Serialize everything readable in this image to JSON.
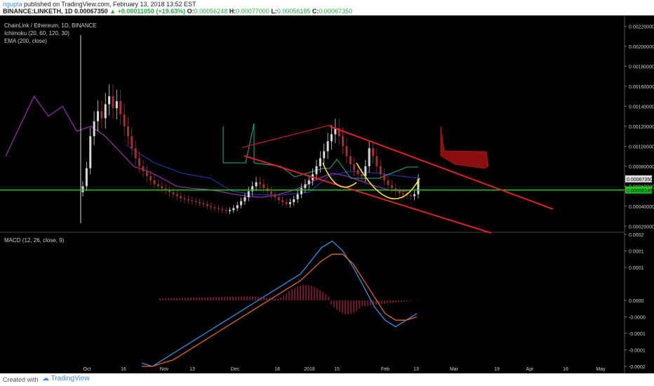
{
  "header": {
    "user": "ngupta",
    "published_text": " published on TradingView.com, February 13, 2018 13:52 EST",
    "symbol": "BINANCE:LINKETH, 1D",
    "price": "0.00067350",
    "change": "+0.00011050 (+19.63%)",
    "o_label": "O:",
    "o_value": "0.00056248",
    "h_label": "H:",
    "h_value": "0.00077000",
    "l_label": "L:",
    "l_value": "0.00056185",
    "c_label": "C:",
    "c_value": "0.00067350"
  },
  "legend": {
    "pair": "ChainLink / Ethereum, 1D, BINANCE",
    "ichimoku": "Ichimoku (20, 60, 120, 30)",
    "ema": "EMA (200, close)",
    "macd": "MACD (12, 26, close, 9)"
  },
  "footer": {
    "created": "Created with",
    "brand": "TradingView"
  },
  "colors": {
    "background": "#000000",
    "candle_up": "#d8d8d8",
    "candle_down": "#a03030",
    "ema": "#9b2fae",
    "trendline": "#e0202a",
    "support": "#22c422",
    "kijun": "#2040c0",
    "tenkan": "#20b090",
    "pattern_arc": "#ffee33",
    "cloud": "#8b0f0f",
    "macd": "#3a8de0",
    "signal": "#e06a1e",
    "histogram": "#8b1a3a"
  },
  "chart_data": [
    {
      "type": "candlestick",
      "title": "ChainLink / Ethereum, 1D, BINANCE",
      "y_tick_labels": [
        "0.00220000",
        "0.00200000",
        "0.00180000",
        "0.00160000",
        "0.00140000",
        "0.00120000",
        "0.00100000",
        "0.00080000",
        "0.00060000",
        "0.00040000",
        "0.00020000"
      ],
      "ylim": [
        0.00016,
        0.00228
      ],
      "x_tick_labels": [
        "Oct",
        "16",
        "Nov",
        "13",
        "Dec",
        "18",
        "2018",
        "15",
        "Feb",
        "13",
        "Mar",
        "19",
        "Apr",
        "16",
        "May"
      ],
      "price_labels": [
        "0.00067350",
        "0.00056185"
      ],
      "close_series": [
        0.0006,
        0.00078,
        0.0011,
        0.00125,
        0.00135,
        0.00128,
        0.00142,
        0.0015,
        0.00138,
        0.00145,
        0.00132,
        0.0012,
        0.0011,
        0.00098,
        0.00088,
        0.0008,
        0.00075,
        0.0007,
        0.00066,
        0.00062,
        0.0006,
        0.00058,
        0.00056,
        0.00054,
        0.00052,
        0.0005,
        0.00048,
        0.00047,
        0.00046,
        0.00045,
        0.00044,
        0.00043,
        0.00042,
        0.0004,
        0.00039,
        0.00038,
        0.00037,
        0.00036,
        0.00035,
        0.00036,
        0.00038,
        0.00041,
        0.00045,
        0.00049,
        0.00055,
        0.0006,
        0.00064,
        0.00062,
        0.00058,
        0.00055,
        0.00052,
        0.00049,
        0.00046,
        0.00044,
        0.00042,
        0.00044,
        0.00047,
        0.00052,
        0.00058,
        0.00062,
        0.00066,
        0.00072,
        0.0008,
        0.00088,
        0.00095,
        0.00105,
        0.00112,
        0.00118,
        0.0011,
        0.001,
        0.0009,
        0.00082,
        0.00076,
        0.00072,
        0.0007,
        0.0008,
        0.00098,
        0.0009,
        0.0008,
        0.00072,
        0.00066,
        0.00061,
        0.00058,
        0.00055,
        0.00053,
        0.00052,
        0.00051,
        0.0005,
        0.00052,
        0.00067
      ],
      "series": [
        {
          "name": "EMA (200, close)",
          "values": [
            0.0009,
            0.0012,
            0.0015,
            0.0013,
            0.0014,
            0.00115,
            0.0012,
            0.0011,
            0.00095,
            0.0008,
            0.00075,
            0.00068,
            0.0006,
            0.00058,
            0.00057,
            0.00055,
            0.00052,
            0.0005,
            0.00049,
            0.00051,
            0.00055,
            0.0006,
            0.00068,
            0.00073,
            0.0007,
            0.00065,
            0.0006,
            0.00056,
            0.00055,
            0.00057
          ]
        }
      ],
      "annotations": [
        "descending channel (red trendlines)",
        "horizontal support (green)",
        "two rounded bottoms (yellow arcs)",
        "projected Ichimoku cloud (dark red)"
      ]
    },
    {
      "type": "line",
      "title": "MACD (12, 26, close, 9)",
      "y_tick_labels": [
        "0.0002",
        "0.0001",
        "0.0001",
        "0.0000",
        "-0.0000",
        "-0.0001",
        "-0.0001",
        "-0.0002"
      ],
      "ylim": [
        -0.0002,
        0.0002
      ],
      "series": [
        {
          "name": "MACD",
          "values": [
            -0.00019,
            -0.0002,
            -0.00018,
            -0.00016,
            -0.00014,
            -0.00012,
            -0.0001,
            -8e-05,
            -6e-05,
            -4e-05,
            -2e-05,
            0.0,
            2e-05,
            4e-05,
            6e-05,
            8e-05,
            0.00012,
            0.00016,
            0.00018,
            0.00015,
            0.0001,
            4e-05,
            -2e-05,
            -6e-05,
            -8e-05,
            -6e-05,
            -4e-05
          ]
        },
        {
          "name": "Signal",
          "values": [
            -0.0002,
            -0.0002,
            -0.00019,
            -0.00018,
            -0.00016,
            -0.00014,
            -0.00012,
            -0.0001,
            -8e-05,
            -6e-05,
            -4e-05,
            -2e-05,
            0.0,
            2e-05,
            4e-05,
            6e-05,
            9e-05,
            0.00012,
            0.00014,
            0.00014,
            0.00011,
            6e-05,
            1e-05,
            -4e-05,
            -6e-05,
            -6e-05,
            -5e-05
          ]
        }
      ]
    }
  ]
}
